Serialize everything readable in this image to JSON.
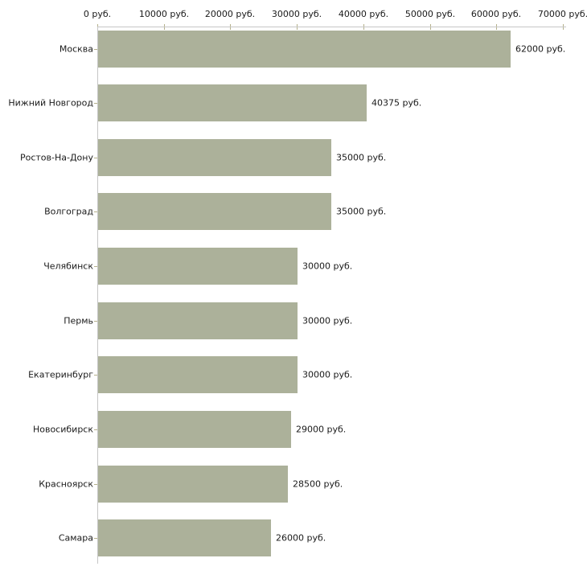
{
  "chart_data": {
    "type": "bar",
    "orientation": "horizontal",
    "categories": [
      "Москва",
      "Нижний Новгород",
      "Ростов-На-Дону",
      "Волгоград",
      "Челябинск",
      "Пермь",
      "Екатеринбург",
      "Новосибирск",
      "Красноярск",
      "Самара"
    ],
    "values": [
      62000,
      40375,
      35000,
      35000,
      30000,
      30000,
      30000,
      29000,
      28500,
      26000
    ],
    "value_labels": [
      "62000 руб.",
      "40375 руб.",
      "35000 руб.",
      "35000 руб.",
      "30000 руб.",
      "30000 руб.",
      "30000 руб.",
      "29000 руб.",
      "28500 руб.",
      "26000 руб."
    ],
    "x_ticks": [
      0,
      10000,
      20000,
      30000,
      40000,
      50000,
      60000,
      70000
    ],
    "x_tick_labels": [
      "0 руб.",
      "10000 руб.",
      "20000 руб.",
      "30000 руб.",
      "40000 руб.",
      "50000 руб.",
      "60000 руб.",
      "70000 руб."
    ],
    "xlim": [
      0,
      70000
    ],
    "unit": "руб.",
    "grid": false,
    "legend": false,
    "colors": {
      "bar": "#acb19a",
      "axis_line": "#c6c6c6",
      "tick_mark": "#b5b18c",
      "text": "#1a1a1a",
      "background": "#ffffff"
    }
  }
}
